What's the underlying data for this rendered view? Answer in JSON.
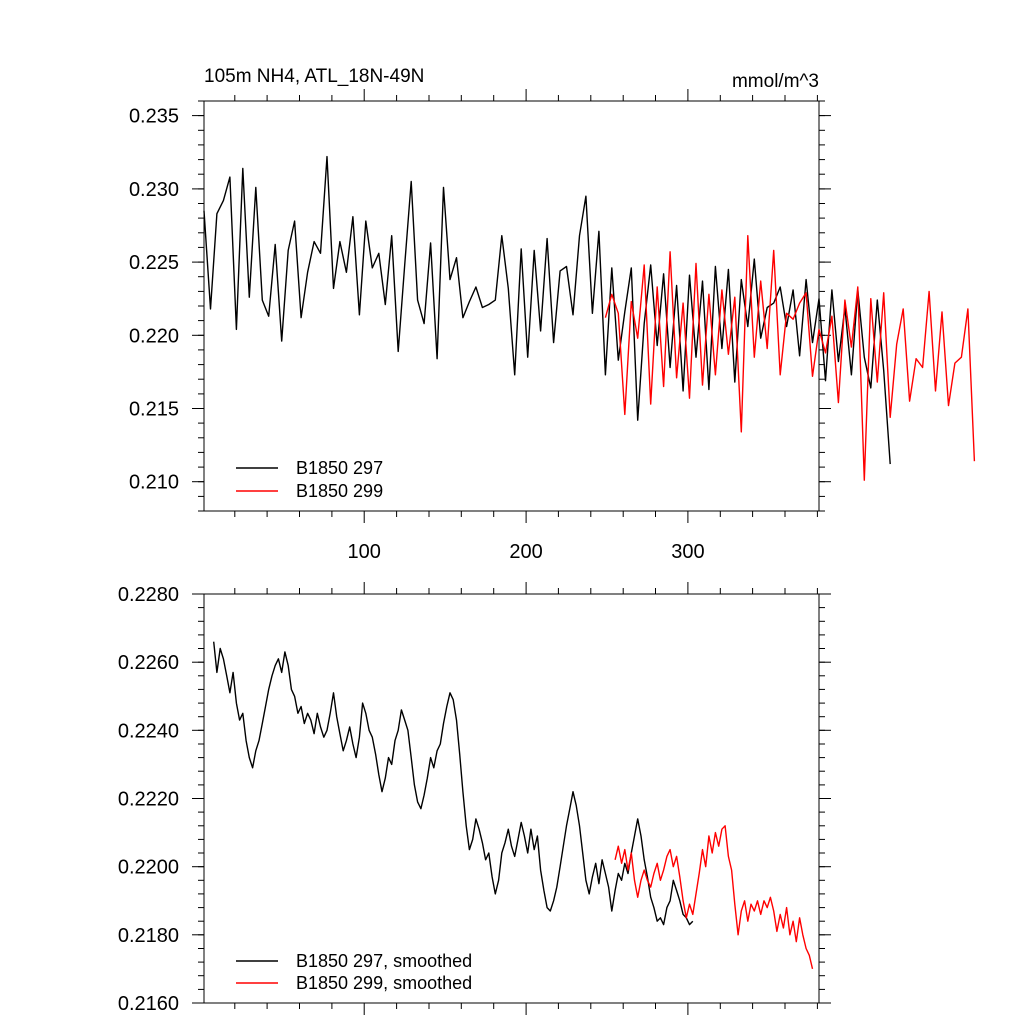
{
  "chart_data": [
    {
      "type": "line",
      "title": "105m NH4, ATL_18N-49N",
      "units": "mmol/m^3",
      "xlabel": "",
      "ylabel": "",
      "xlim": [
        1,
        381
      ],
      "ylim": [
        0.208,
        0.236
      ],
      "xticks": [
        100,
        200,
        300
      ],
      "xtick_labels": [
        "100",
        "200",
        "300"
      ],
      "yticks": [
        0.21,
        0.215,
        0.22,
        0.225,
        0.23,
        0.235
      ],
      "ytick_labels": [
        "0.210",
        "0.215",
        "0.220",
        "0.225",
        "0.230",
        "0.235"
      ],
      "legend_position": "bottom-left",
      "series": [
        {
          "name": "B1850 297",
          "color": "#000000",
          "x_start": 1,
          "x_step": 4,
          "values": [
            0.2285,
            0.2218,
            0.2283,
            0.2292,
            0.2308,
            0.2204,
            0.2314,
            0.2226,
            0.2301,
            0.2224,
            0.2213,
            0.2262,
            0.2196,
            0.2258,
            0.2278,
            0.2212,
            0.2243,
            0.2264,
            0.2256,
            0.2322,
            0.2232,
            0.2264,
            0.2243,
            0.2281,
            0.2214,
            0.2278,
            0.2246,
            0.2256,
            0.2221,
            0.2268,
            0.2189,
            0.2248,
            0.2305,
            0.2224,
            0.2208,
            0.2263,
            0.2184,
            0.2301,
            0.2238,
            0.2253,
            0.2212,
            0.2223,
            0.2233,
            0.2219,
            0.2221,
            0.2224,
            0.2268,
            0.2232,
            0.2173,
            0.2259,
            0.2185,
            0.2258,
            0.2203,
            0.2266,
            0.2195,
            0.2244,
            0.2247,
            0.2214,
            0.2268,
            0.2295,
            0.2215,
            0.2271,
            0.2173,
            0.2246,
            0.2183,
            0.2216,
            0.2246,
            0.2142,
            0.2208,
            0.2248,
            0.2193,
            0.2242,
            0.2178,
            0.2234,
            0.2162,
            0.2241,
            0.2185,
            0.2237,
            0.2163,
            0.2247,
            0.2191,
            0.2245,
            0.2168,
            0.2238,
            0.2206,
            0.2252,
            0.2198,
            0.2219,
            0.2222,
            0.2233,
            0.2206,
            0.2231,
            0.2186,
            0.2238,
            0.2195,
            0.2225,
            0.2169,
            0.2231,
            0.2182,
            0.2219,
            0.2173,
            0.2231,
            0.2185,
            0.2164,
            0.2224,
            0.2176,
            0.2112
          ]
        },
        {
          "name": "B1850 299",
          "color": "#ff0000",
          "x_start": 249,
          "x_step": 4,
          "values": [
            0.2212,
            0.2228,
            0.2215,
            0.2146,
            0.2223,
            0.2198,
            0.2248,
            0.2153,
            0.2233,
            0.2165,
            0.2257,
            0.2171,
            0.2222,
            0.2157,
            0.2249,
            0.2166,
            0.2228,
            0.2173,
            0.2231,
            0.2187,
            0.2226,
            0.2134,
            0.2268,
            0.2185,
            0.2237,
            0.2191,
            0.2258,
            0.2173,
            0.2215,
            0.2211,
            0.2222,
            0.2229,
            0.2172,
            0.2204,
            0.2188,
            0.2213,
            0.2154,
            0.2224,
            0.2192,
            0.2233,
            0.2101,
            0.2225,
            0.2168,
            0.2229,
            0.2144,
            0.2194,
            0.2218,
            0.2155,
            0.2184,
            0.2178,
            0.223,
            0.2162,
            0.2216,
            0.2152,
            0.2181,
            0.2185,
            0.2218,
            0.2114
          ]
        }
      ]
    },
    {
      "type": "line",
      "title": "",
      "xlabel": "",
      "ylabel": "",
      "xlim": [
        1,
        381
      ],
      "ylim": [
        0.216,
        0.228
      ],
      "xticks": [
        100,
        200,
        300
      ],
      "xtick_labels": [
        "",
        "",
        ""
      ],
      "yticks": [
        0.216,
        0.218,
        0.22,
        0.222,
        0.224,
        0.226,
        0.228
      ],
      "ytick_labels": [
        "0.2160",
        "0.2180",
        "0.2200",
        "0.2220",
        "0.2240",
        "0.2260",
        "0.2280"
      ],
      "legend_position": "bottom-left",
      "series": [
        {
          "name": "B1850 297, smoothed",
          "color": "#000000",
          "x": [
            7,
            9,
            11,
            13,
            15,
            17,
            19,
            21,
            23,
            25,
            27,
            29,
            31,
            33,
            35,
            37,
            39,
            41,
            43,
            45,
            47,
            49,
            51,
            53,
            55,
            57,
            59,
            61,
            63,
            65,
            67,
            69,
            71,
            73,
            75,
            77,
            79,
            81,
            83,
            85,
            87,
            89,
            91,
            93,
            95,
            97,
            99,
            101,
            103,
            105,
            107,
            109,
            111,
            113,
            115,
            117,
            119,
            121,
            123,
            125,
            127,
            129,
            131,
            133,
            135,
            137,
            139,
            141,
            143,
            145,
            147,
            149,
            151,
            153,
            155,
            157,
            159,
            161,
            163,
            165,
            167,
            169,
            171,
            173,
            175,
            177,
            179,
            181,
            183,
            185,
            187,
            189,
            191,
            193,
            195,
            197,
            199,
            201,
            203,
            205,
            207,
            209,
            211,
            213,
            215,
            217,
            219,
            221,
            223,
            225,
            227,
            229,
            231,
            233,
            235,
            237,
            239,
            241,
            243,
            245,
            247,
            249,
            251,
            253,
            255,
            257,
            259,
            261,
            263,
            265,
            267,
            269,
            271,
            273,
            275,
            277,
            279,
            281,
            283,
            285,
            287,
            289,
            291,
            293,
            295,
            297,
            299,
            301,
            303
          ],
          "values": [
            0.2266,
            0.2257,
            0.2264,
            0.2261,
            0.2256,
            0.2251,
            0.2257,
            0.2248,
            0.2243,
            0.2245,
            0.2237,
            0.2232,
            0.2229,
            0.2234,
            0.2237,
            0.2242,
            0.2247,
            0.2252,
            0.2256,
            0.2259,
            0.2261,
            0.2257,
            0.2263,
            0.2259,
            0.2252,
            0.225,
            0.2245,
            0.2247,
            0.2242,
            0.2245,
            0.2243,
            0.2239,
            0.2245,
            0.2241,
            0.2238,
            0.224,
            0.2245,
            0.2251,
            0.2244,
            0.2239,
            0.2234,
            0.2237,
            0.2241,
            0.2236,
            0.2232,
            0.2238,
            0.2248,
            0.2245,
            0.224,
            0.2238,
            0.2233,
            0.2227,
            0.2222,
            0.2226,
            0.2232,
            0.223,
            0.2237,
            0.224,
            0.2246,
            0.2243,
            0.224,
            0.2232,
            0.2224,
            0.2219,
            0.2217,
            0.2221,
            0.2226,
            0.2232,
            0.2229,
            0.2234,
            0.2236,
            0.2242,
            0.2247,
            0.2251,
            0.2249,
            0.2243,
            0.2233,
            0.2222,
            0.2212,
            0.2205,
            0.2208,
            0.2214,
            0.2211,
            0.2207,
            0.2202,
            0.2204,
            0.2197,
            0.2192,
            0.2196,
            0.2204,
            0.2207,
            0.2211,
            0.2206,
            0.2203,
            0.2208,
            0.2213,
            0.2209,
            0.2204,
            0.2211,
            0.2205,
            0.2209,
            0.2199,
            0.2193,
            0.2188,
            0.2187,
            0.219,
            0.2194,
            0.22,
            0.2206,
            0.2212,
            0.2217,
            0.2222,
            0.2218,
            0.2212,
            0.2204,
            0.2196,
            0.2192,
            0.2197,
            0.2201,
            0.2195,
            0.2202,
            0.2198,
            0.2194,
            0.2187,
            0.2193,
            0.2198,
            0.2196,
            0.2201,
            0.2198,
            0.2204,
            0.2209,
            0.2214,
            0.2209,
            0.2202,
            0.2197,
            0.2191,
            0.2188,
            0.2184,
            0.2185,
            0.2183,
            0.2188,
            0.219,
            0.2196,
            0.2193,
            0.219,
            0.2186,
            0.2185,
            0.2183,
            0.2184
          ]
        },
        {
          "name": "B1850 299, smoothed",
          "color": "#ff0000",
          "x": [
            255,
            257,
            259,
            261,
            263,
            265,
            267,
            269,
            271,
            273,
            275,
            277,
            279,
            281,
            283,
            285,
            287,
            289,
            291,
            293,
            295,
            297,
            299,
            301,
            303,
            305,
            307,
            309,
            311,
            313,
            315,
            317,
            319,
            321,
            323,
            325,
            327,
            329,
            331,
            333,
            335,
            337,
            339,
            341,
            343,
            345,
            347,
            349,
            351,
            353,
            355,
            357,
            359,
            361,
            363,
            365,
            367,
            369,
            371,
            373,
            375,
            377
          ],
          "values": [
            0.2202,
            0.2206,
            0.2201,
            0.2205,
            0.2199,
            0.2204,
            0.2196,
            0.2191,
            0.2196,
            0.2199,
            0.2196,
            0.2194,
            0.2198,
            0.2201,
            0.2196,
            0.2199,
            0.2203,
            0.2205,
            0.22,
            0.2203,
            0.2197,
            0.219,
            0.2185,
            0.2189,
            0.2186,
            0.2192,
            0.2198,
            0.2205,
            0.22,
            0.2209,
            0.2204,
            0.221,
            0.2206,
            0.2211,
            0.2212,
            0.2203,
            0.2199,
            0.2189,
            0.218,
            0.2187,
            0.219,
            0.2184,
            0.2189,
            0.2187,
            0.219,
            0.2186,
            0.219,
            0.2188,
            0.2191,
            0.2187,
            0.2181,
            0.2186,
            0.2182,
            0.2188,
            0.218,
            0.2184,
            0.2178,
            0.2185,
            0.218,
            0.2176,
            0.2174,
            0.217
          ]
        }
      ]
    }
  ]
}
